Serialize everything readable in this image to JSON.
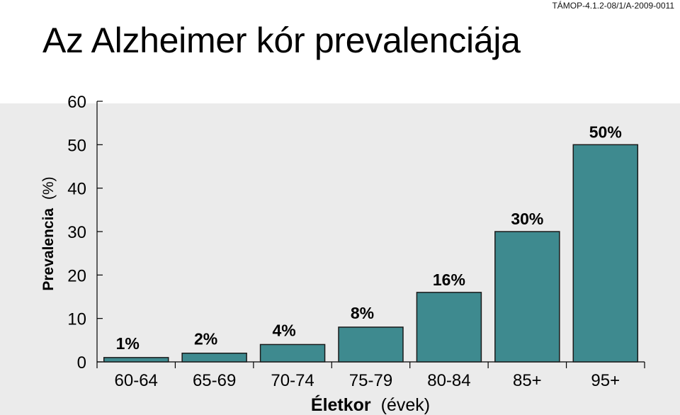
{
  "header": {
    "title": "Az Alzheimer kór prevalenciája",
    "project_code": "TÁMOP-4.1.2-08/1/A-2009-0011"
  },
  "colors": {
    "bar_fill": "#3e8a8f",
    "bar_stroke": "#1a1a1a",
    "panel_background": "#ebebeb",
    "text": "#000000"
  },
  "chart_data": {
    "type": "bar",
    "ylabel_bold": "Prevalencia",
    "ylabel_rest": "(%)",
    "xlabel_bold": "Életkor",
    "xlabel_rest": "(évek)",
    "categories": [
      "60-64",
      "65-69",
      "70-74",
      "75-79",
      "80-84",
      "85+",
      "95+"
    ],
    "values": [
      1,
      2,
      4,
      8,
      16,
      30,
      50
    ],
    "data_labels": [
      "1%",
      "2%",
      "4%",
      "8%",
      "16%",
      "30%",
      "50%"
    ],
    "yticks": [
      0,
      10,
      20,
      30,
      40,
      50,
      60
    ],
    "ylim": [
      0,
      60
    ],
    "grid": false,
    "legend": "none"
  }
}
